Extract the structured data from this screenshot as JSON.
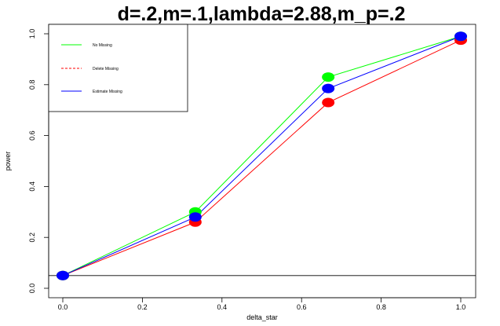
{
  "chart_data": {
    "type": "line",
    "title": "d=.2,m=.1,lambda=2.88,m_p=.2",
    "xlabel": "delta_star",
    "ylabel": "power",
    "x": [
      0.0,
      0.333,
      0.667,
      1.0
    ],
    "xlim": [
      0,
      1
    ],
    "ylim": [
      0,
      1
    ],
    "x_ticks": [
      "0.0",
      "0.2",
      "0.4",
      "0.6",
      "0.8",
      "1.0"
    ],
    "y_ticks": [
      "0.0",
      "0.2",
      "0.4",
      "0.6",
      "0.8",
      "1.0"
    ],
    "reference_line_y": 0.05,
    "grid": false,
    "legend_position": "top-left",
    "series": [
      {
        "name": "No Missing",
        "values": [
          0.05,
          0.3,
          0.83,
          0.99
        ],
        "color": "#00ff00",
        "line_style": "solid"
      },
      {
        "name": "Delete Missing",
        "values": [
          0.05,
          0.26,
          0.73,
          0.975
        ],
        "color": "#ff0000",
        "line_style": "dashed"
      },
      {
        "name": "Estimate Missing",
        "values": [
          0.05,
          0.28,
          0.785,
          0.99
        ],
        "color": "#0000ff",
        "line_style": "solid"
      }
    ],
    "marker_draw_order": [
      "Delete Missing",
      "No Missing",
      "Estimate Missing"
    ]
  }
}
